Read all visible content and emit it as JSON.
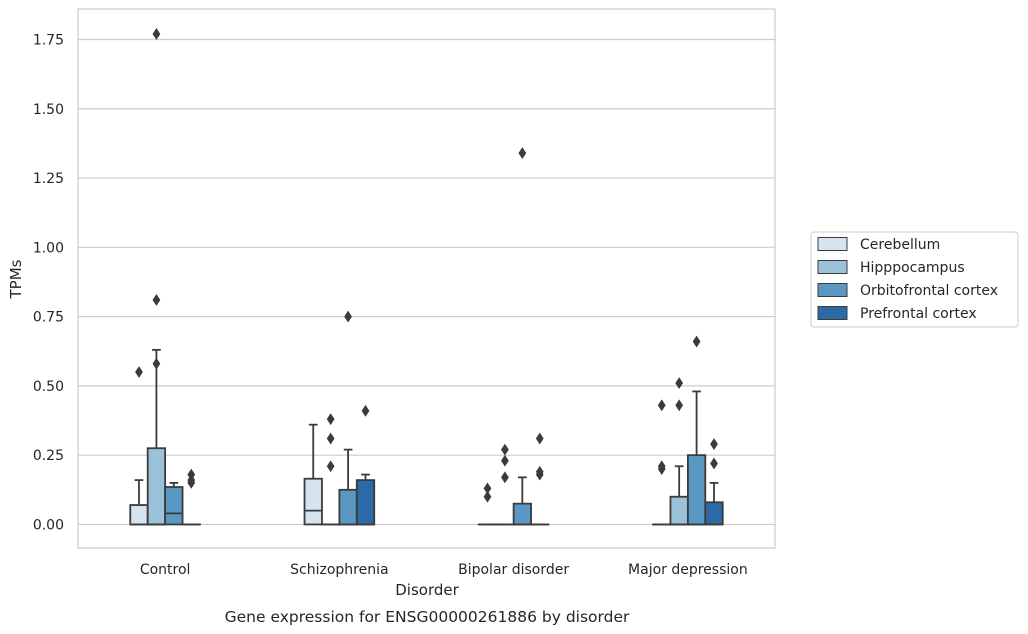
{
  "chart_data": {
    "type": "box",
    "caption": "Gene expression for ENSG00000261886 by disorder",
    "xlabel": "Disorder",
    "ylabel": "TPMs",
    "ylim": [
      -0.085,
      1.86
    ],
    "yticks": [
      "0.00",
      "0.25",
      "0.50",
      "0.75",
      "1.00",
      "1.25",
      "1.50",
      "1.75"
    ],
    "ytick_values": [
      0,
      0.25,
      0.5,
      0.75,
      1.0,
      1.25,
      1.5,
      1.75
    ],
    "grid": "horizontal",
    "legend_position": "right",
    "categories": [
      "Control",
      "Schizophrenia",
      "Bipolar disorder",
      "Major depression"
    ],
    "series": [
      {
        "name": "Cerebellum",
        "color": "#d6e4f2",
        "boxes": [
          {
            "q1": 0,
            "median": 0,
            "q3": 0.07,
            "whisker_low": 0,
            "whisker_high": 0.16,
            "outliers": [
              0.55
            ]
          },
          {
            "q1": 0,
            "median": 0.05,
            "q3": 0.165,
            "whisker_low": 0,
            "whisker_high": 0.36,
            "outliers": []
          },
          {
            "q1": 0,
            "median": 0,
            "q3": 0,
            "whisker_low": 0,
            "whisker_high": 0,
            "outliers": [
              0.1,
              0.13
            ]
          },
          {
            "q1": 0,
            "median": 0,
            "q3": 0,
            "whisker_low": 0,
            "whisker_high": 0,
            "outliers": [
              0.2,
              0.21,
              0.43
            ]
          }
        ]
      },
      {
        "name": "Hipppocampus",
        "color": "#9bc2da",
        "boxes": [
          {
            "q1": 0,
            "median": 0,
            "q3": 0.275,
            "whisker_low": 0,
            "whisker_high": 0.63,
            "outliers": [
              0.58,
              0.81,
              1.77
            ]
          },
          {
            "q1": 0,
            "median": 0,
            "q3": 0,
            "whisker_low": 0,
            "whisker_high": 0,
            "outliers": [
              0.21,
              0.31,
              0.38
            ]
          },
          {
            "q1": 0,
            "median": 0,
            "q3": 0,
            "whisker_low": 0,
            "whisker_high": 0,
            "outliers": [
              0.17,
              0.23,
              0.27
            ]
          },
          {
            "q1": 0,
            "median": 0,
            "q3": 0.1,
            "whisker_low": 0,
            "whisker_high": 0.21,
            "outliers": [
              0.43,
              0.51
            ]
          }
        ]
      },
      {
        "name": "Orbitofrontal cortex",
        "color": "#5a98c4",
        "boxes": [
          {
            "q1": 0,
            "median": 0.04,
            "q3": 0.135,
            "whisker_low": 0,
            "whisker_high": 0.15,
            "outliers": []
          },
          {
            "q1": 0,
            "median": 0,
            "q3": 0.125,
            "whisker_low": 0,
            "whisker_high": 0.27,
            "outliers": [
              0.75
            ]
          },
          {
            "q1": 0,
            "median": 0,
            "q3": 0.075,
            "whisker_low": 0,
            "whisker_high": 0.17,
            "outliers": [
              1.34
            ]
          },
          {
            "q1": 0,
            "median": 0,
            "q3": 0.25,
            "whisker_low": 0,
            "whisker_high": 0.48,
            "outliers": [
              0.66
            ]
          }
        ]
      },
      {
        "name": "Prefrontal cortex",
        "color": "#2c6aa7",
        "boxes": [
          {
            "q1": 0,
            "median": 0,
            "q3": 0,
            "whisker_low": 0,
            "whisker_high": 0,
            "outliers": [
              0.15,
              0.16,
              0.18
            ]
          },
          {
            "q1": 0,
            "median": 0,
            "q3": 0.16,
            "whisker_low": 0,
            "whisker_high": 0.18,
            "outliers": [
              0.41
            ]
          },
          {
            "q1": 0,
            "median": 0,
            "q3": 0,
            "whisker_low": 0,
            "whisker_high": 0,
            "outliers": [
              0.18,
              0.19,
              0.31
            ]
          },
          {
            "q1": 0,
            "median": 0,
            "q3": 0.08,
            "whisker_low": 0,
            "whisker_high": 0.15,
            "outliers": [
              0.22,
              0.29
            ]
          }
        ]
      }
    ]
  }
}
